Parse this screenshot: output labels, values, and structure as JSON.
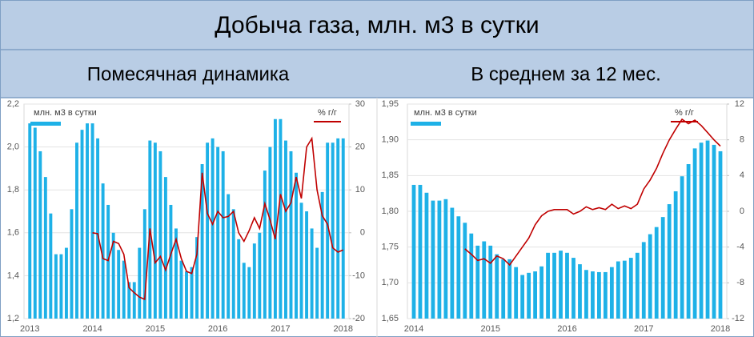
{
  "header": {
    "title": "Добыча газа, млн. м3 в сутки"
  },
  "chart_data": [
    {
      "type": "combo",
      "title": "Помесячная динамика",
      "categories": [
        "2013",
        null,
        null,
        null,
        null,
        null,
        null,
        null,
        null,
        null,
        null,
        null,
        "2014",
        null,
        null,
        null,
        null,
        null,
        null,
        null,
        null,
        null,
        null,
        null,
        "2015",
        null,
        null,
        null,
        null,
        null,
        null,
        null,
        null,
        null,
        null,
        null,
        "2016",
        null,
        null,
        null,
        null,
        null,
        null,
        null,
        null,
        null,
        null,
        null,
        "2017",
        null,
        null,
        null,
        null,
        null,
        null,
        null,
        null,
        null,
        null,
        null,
        "2018"
      ],
      "ylim": [
        1.2,
        2.2
      ],
      "yticks": [
        {
          "value": 1.2,
          "label": "1,2"
        },
        {
          "value": 1.4,
          "label": "1,4"
        },
        {
          "value": 1.6,
          "label": "1,6"
        },
        {
          "value": 1.8,
          "label": "1,8"
        },
        {
          "value": 2.0,
          "label": "2,0"
        },
        {
          "value": 2.2,
          "label": "2,2"
        }
      ],
      "y2lim": [
        -20,
        30
      ],
      "y2ticks": [
        -20,
        -10,
        0,
        10,
        20,
        30
      ],
      "grid": true,
      "series": [
        {
          "name": "млн. м3 в сутки",
          "type": "bar",
          "color": "#1eb1e7",
          "values": [
            2.11,
            2.09,
            1.98,
            1.86,
            1.69,
            1.5,
            1.5,
            1.53,
            1.71,
            2.02,
            2.08,
            2.11,
            2.11,
            2.04,
            1.83,
            1.73,
            1.6,
            1.52,
            1.47,
            1.37,
            1.37,
            1.53,
            1.71,
            2.03,
            2.02,
            1.98,
            1.86,
            1.73,
            1.62,
            1.47,
            1.42,
            1.44,
            1.58,
            1.92,
            2.02,
            2.04,
            2.0,
            1.98,
            1.78,
            1.71,
            1.57,
            1.46,
            1.44,
            1.55,
            1.6,
            1.89,
            2.0,
            2.13,
            2.13,
            2.03,
            1.98,
            1.88,
            1.74,
            1.7,
            1.62,
            1.53,
            1.79,
            2.02,
            2.02,
            2.04,
            2.04
          ]
        },
        {
          "name": "% г/г",
          "type": "line",
          "axis": "y2",
          "color": "#c00000",
          "values": [
            null,
            null,
            null,
            null,
            null,
            null,
            null,
            null,
            null,
            null,
            null,
            null,
            0,
            -0.2,
            -6,
            -6.5,
            -2,
            -2.5,
            -5,
            -12.8,
            -14,
            -15,
            -15.5,
            1,
            -7,
            -5.5,
            -8.7,
            -5,
            -1.5,
            -6,
            -9,
            -9.5,
            -5,
            14,
            4.5,
            2,
            5,
            3.5,
            3.8,
            5,
            0,
            -2,
            0.5,
            3.5,
            1,
            6.8,
            3,
            -1.5,
            9,
            5,
            7,
            13,
            8,
            20,
            22,
            10,
            4,
            2,
            -3.5,
            -4.5,
            -4
          ]
        }
      ]
    },
    {
      "type": "combo",
      "title": "В среднем за 12 мес.",
      "categories": [
        "2014",
        null,
        null,
        null,
        null,
        null,
        null,
        null,
        null,
        null,
        null,
        null,
        "2015",
        null,
        null,
        null,
        null,
        null,
        null,
        null,
        null,
        null,
        null,
        null,
        "2016",
        null,
        null,
        null,
        null,
        null,
        null,
        null,
        null,
        null,
        null,
        null,
        "2017",
        null,
        null,
        null,
        null,
        null,
        null,
        null,
        null,
        null,
        null,
        null,
        "2018"
      ],
      "ylim": [
        1.65,
        1.95
      ],
      "yticks": [
        {
          "value": 1.65,
          "label": "1,65"
        },
        {
          "value": 1.7,
          "label": "1,70"
        },
        {
          "value": 1.75,
          "label": "1,75"
        },
        {
          "value": 1.8,
          "label": "1,80"
        },
        {
          "value": 1.85,
          "label": "1,85"
        },
        {
          "value": 1.9,
          "label": "1,90"
        },
        {
          "value": 1.95,
          "label": "1,95"
        }
      ],
      "y2lim": [
        -12,
        12
      ],
      "y2ticks": [
        -12,
        -8,
        -4,
        0,
        4,
        8,
        12
      ],
      "grid": true,
      "series": [
        {
          "name": "млн. м3 в сутки",
          "type": "bar",
          "color": "#1eb1e7",
          "values": [
            1.837,
            1.837,
            1.826,
            1.815,
            1.815,
            1.817,
            1.805,
            1.793,
            1.784,
            1.769,
            1.752,
            1.758,
            1.752,
            1.74,
            1.733,
            1.733,
            1.722,
            1.711,
            1.714,
            1.716,
            1.723,
            1.742,
            1.742,
            1.745,
            1.742,
            1.735,
            1.726,
            1.718,
            1.716,
            1.715,
            1.715,
            1.722,
            1.73,
            1.731,
            1.735,
            1.742,
            1.757,
            1.768,
            1.778,
            1.792,
            1.81,
            1.828,
            1.849,
            1.866,
            1.888,
            1.896,
            1.899,
            1.893,
            1.884
          ]
        },
        {
          "name": "% г/г",
          "type": "line",
          "axis": "y2",
          "color": "#c00000",
          "values": [
            null,
            null,
            null,
            null,
            null,
            null,
            null,
            null,
            -4.2,
            -4.8,
            -5.5,
            -5.3,
            -5.8,
            -5,
            -5.3,
            -6,
            -5,
            -4,
            -3,
            -1.5,
            -0.5,
            0,
            0.2,
            0.2,
            0.2,
            -0.3,
            0,
            0.5,
            0.2,
            0.4,
            0.2,
            0.8,
            0.3,
            0.6,
            0.3,
            0.8,
            2.5,
            3.5,
            4.8,
            6.5,
            8,
            9.2,
            10.3,
            9.8,
            10.2,
            9.6,
            8.8,
            8,
            7.3
          ]
        }
      ]
    }
  ]
}
